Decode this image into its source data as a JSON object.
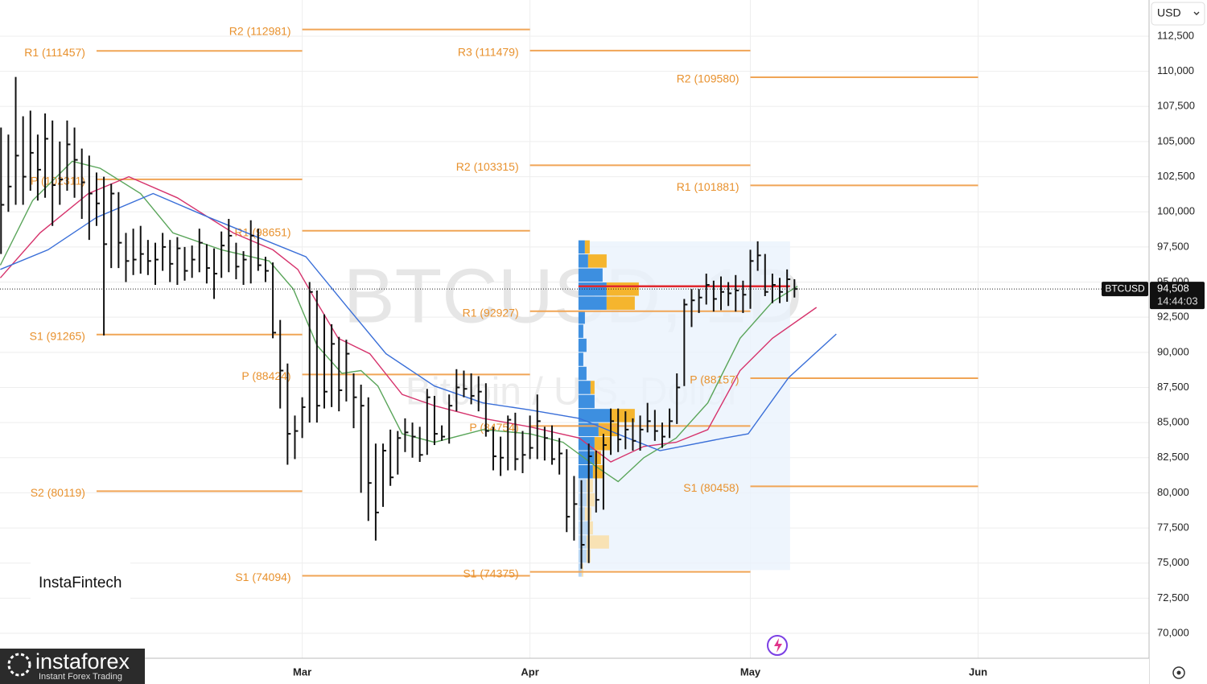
{
  "chart_data": {
    "type": "ohlc",
    "symbol_tag": "BTCUSD",
    "currency": "USD",
    "watermark_title": "BTCUSD, 1D",
    "watermark_subtitle": "Bitcoin / U.S. Dollar",
    "xlim": [
      -13.14,
      143.27
    ],
    "ylim": [
      68225,
      115077
    ],
    "xticks": [
      {
        "value": 28,
        "label": "Mar"
      },
      {
        "value": 59,
        "label": "Apr"
      },
      {
        "value": 89,
        "label": "May"
      },
      {
        "value": 120,
        "label": "Jun"
      }
    ],
    "yticks": [
      {
        "value": 70000,
        "label": "70,000"
      },
      {
        "value": 72500,
        "label": "72,500"
      },
      {
        "value": 75000,
        "label": "75,000"
      },
      {
        "value": 77500,
        "label": "77,500"
      },
      {
        "value": 80000,
        "label": "80,000"
      },
      {
        "value": 82500,
        "label": "82,500"
      },
      {
        "value": 85000,
        "label": "85,000"
      },
      {
        "value": 87500,
        "label": "87,500"
      },
      {
        "value": 90000,
        "label": "90,000"
      },
      {
        "value": 92500,
        "label": "92,500"
      },
      {
        "value": 95000,
        "label": "95,000"
      },
      {
        "value": 97500,
        "label": "97,500"
      },
      {
        "value": 100000,
        "label": "100,000"
      },
      {
        "value": 102500,
        "label": "102,500"
      },
      {
        "value": 105000,
        "label": "105,000"
      },
      {
        "value": 107500,
        "label": "107,500"
      },
      {
        "value": 110000,
        "label": "110,000"
      },
      {
        "value": 112500,
        "label": "112,500"
      }
    ],
    "grid": true,
    "bar_color": "#111111",
    "first_day": -13,
    "high": [
      106000,
      105500,
      109600,
      106800,
      107200,
      105500,
      107000,
      106500,
      105000,
      106500,
      106000,
      104500,
      104000,
      102800,
      102500,
      102000,
      101400,
      98500,
      98800,
      99000,
      98000,
      97800,
      98500,
      98000,
      98200,
      97500,
      97600,
      98800,
      97700,
      97400,
      98600,
      99500,
      97800,
      97200,
      99400,
      98800,
      96800,
      96400,
      92300,
      89200,
      85500,
      86800,
      95000,
      94400,
      92700,
      92000,
      91100,
      90900,
      88500,
      87700,
      86800,
      83500,
      83500,
      84500,
      84400,
      85300,
      85000,
      84700,
      87400,
      86900,
      84800,
      87000,
      88800,
      88700,
      88500,
      88300,
      87800,
      84700,
      84000,
      85500,
      85700,
      84400,
      85500,
      87000,
      84700,
      84800,
      83900,
      83100,
      81200,
      80900,
      83500,
      83000,
      84200,
      86000,
      86000,
      85800,
      85300,
      85500,
      86400,
      85900,
      85000,
      86000,
      88500,
      93800,
      94500,
      94500,
      95600,
      95100,
      95400,
      95000,
      95500,
      95100,
      97300,
      97900,
      97000,
      95600,
      95300,
      95900,
      95200
    ],
    "low": [
      97000,
      100000,
      100500,
      100500,
      101500,
      100800,
      101000,
      99000,
      100500,
      101500,
      101000,
      99500,
      98000,
      99000,
      91200,
      96000,
      96000,
      95000,
      95500,
      95600,
      95500,
      94800,
      95800,
      95000,
      94800,
      95100,
      95300,
      95700,
      94900,
      93800,
      95300,
      95700,
      95200,
      94800,
      94900,
      95800,
      95000,
      91000,
      86000,
      82000,
      82400,
      83900,
      85000,
      85000,
      86000,
      86100,
      85800,
      86500,
      84600,
      80000,
      78000,
      76600,
      79000,
      80500,
      81300,
      82900,
      82500,
      82200,
      82700,
      83400,
      83700,
      83500,
      85800,
      86800,
      86300,
      85800,
      84000,
      81600,
      81200,
      81600,
      81600,
      81400,
      82400,
      82400,
      82300,
      82000,
      81300,
      77200,
      76600,
      74600,
      75000,
      78600,
      78800,
      82700,
      82900,
      83100,
      83000,
      83000,
      84300,
      83700,
      83200,
      83900,
      84900,
      87600,
      91800,
      92800,
      93400,
      92900,
      93000,
      93300,
      92900,
      92800,
      93100,
      95800,
      94000,
      93500,
      93500,
      93600,
      93900
    ],
    "close": [
      100500,
      101800,
      104000,
      102500,
      104200,
      103000,
      105200,
      101900,
      102300,
      104800,
      103700,
      102100,
      101300,
      100600,
      97700,
      101300,
      97800,
      96500,
      96600,
      97000,
      96500,
      96600,
      97500,
      96300,
      97400,
      95800,
      96600,
      97800,
      96000,
      95600,
      97600,
      98300,
      96100,
      96600,
      98300,
      96200,
      95800,
      91400,
      88700,
      84200,
      84400,
      86100,
      94300,
      86200,
      87200,
      90600,
      87300,
      89900,
      86800,
      86200,
      80700,
      78600,
      83000,
      81100,
      83900,
      84300,
      84000,
      82700,
      86800,
      84200,
      84000,
      86200,
      87500,
      87400,
      86900,
      87200,
      84400,
      82600,
      82500,
      85200,
      82400,
      82700,
      83200,
      85100,
      83900,
      82400,
      82800,
      78300,
      79200,
      76300,
      82600,
      79500,
      83400,
      85100,
      83800,
      84500,
      83700,
      84500,
      85100,
      84400,
      84000,
      85100,
      87500,
      93400,
      93700,
      93900,
      94800,
      93800,
      94300,
      94200,
      94400,
      94100,
      96500,
      96900,
      94300,
      94800,
      94300,
      95200,
      94508
    ],
    "moving_averages": [
      {
        "color": "#5aa55a",
        "x": [
          -13.1,
          -8.7,
          -3.3,
          0.5,
          6,
          10.4,
          17,
          23.5,
          26.8,
          30,
          33.4,
          36,
          38.3,
          41.6,
          46,
          52.6,
          59,
          63.5,
          67.9,
          71,
          74.5,
          78.9,
          83.2,
          87.6,
          92,
          95.4
        ],
        "values": [
          96200,
          100800,
          103600,
          103100,
          101300,
          98500,
          97300,
          96500,
          94500,
          90500,
          88500,
          88700,
          87600,
          84200,
          83600,
          84500,
          84200,
          83600,
          81900,
          80800,
          82500,
          83900,
          86400,
          91000,
          93600,
          94700
        ]
      },
      {
        "color": "#d6336c",
        "x": [
          -13.1,
          -7.7,
          -1.1,
          4.4,
          11,
          18.6,
          24,
          27.4,
          29.6,
          32.9,
          37.2,
          41.6,
          46,
          52.6,
          59,
          65.7,
          70,
          74.5,
          78.9,
          83.2,
          87.6,
          92,
          98
        ],
        "values": [
          95300,
          98500,
          101300,
          102500,
          101000,
          98500,
          97300,
          95900,
          93900,
          91000,
          89900,
          87000,
          86200,
          85300,
          84700,
          83900,
          82200,
          83300,
          83600,
          84500,
          88700,
          91000,
          93200
        ]
      },
      {
        "color": "#3a6fd8",
        "x": [
          -13.1,
          -6.6,
          0,
          7.7,
          15.3,
          21.9,
          28.5,
          34,
          39.4,
          46,
          52.6,
          59,
          65.7,
          72.3,
          76.7,
          85.5,
          88.7,
          94.2,
          100.7
        ],
        "values": [
          95900,
          97300,
          99600,
          101300,
          99600,
          98200,
          96800,
          93300,
          89900,
          87600,
          86400,
          85900,
          85300,
          83900,
          83000,
          83900,
          84200,
          88200,
          91300
        ]
      }
    ],
    "pivots": [
      {
        "label": "R1 (111457)",
        "value": 111457,
        "start": 0,
        "end": 28
      },
      {
        "label": "P (102311)",
        "value": 102311,
        "start": 0,
        "end": 28
      },
      {
        "label": "S1 (91265)",
        "value": 91265,
        "start": 0,
        "end": 28
      },
      {
        "label": "S2 (80119)",
        "value": 80119,
        "start": 0,
        "end": 28
      },
      {
        "label": "R2 (112981)",
        "value": 112981,
        "start": 28,
        "end": 59
      },
      {
        "label": "R1 (98651)",
        "value": 98651,
        "start": 28,
        "end": 59
      },
      {
        "label": "P (88424)",
        "value": 88424,
        "start": 28,
        "end": 59
      },
      {
        "label": "S1 (74094)",
        "value": 74094,
        "start": 28,
        "end": 59
      },
      {
        "label": "R3 (111479)",
        "value": 111479,
        "start": 59,
        "end": 89
      },
      {
        "label": "R2 (103315)",
        "value": 103315,
        "start": 59,
        "end": 89
      },
      {
        "label": "R1 (92927)",
        "value": 92927,
        "start": 59,
        "end": 89
      },
      {
        "label": "P (84754)",
        "value": 84754,
        "start": 59,
        "end": 89
      },
      {
        "label": "S1 (74375)",
        "value": 74375,
        "start": 59,
        "end": 89
      },
      {
        "label": "R2 (109580)",
        "value": 109580,
        "start": 89,
        "end": 120
      },
      {
        "label": "R1 (101881)",
        "value": 101881,
        "start": 89,
        "end": 120
      },
      {
        "label": "P (88157)",
        "value": 88157,
        "start": 89,
        "end": 120
      },
      {
        "label": "S1 (80458)",
        "value": 80458,
        "start": 89,
        "end": 120
      }
    ],
    "volume_profile": {
      "start": 65.6,
      "end": 94.4,
      "top": 97900,
      "bottom": 74500,
      "poc": 94700,
      "value_area_low": 81100,
      "prices": [
        97500,
        96500,
        95500,
        94500,
        93500,
        92500,
        91500,
        90500,
        89500,
        88500,
        87500,
        86500,
        85500,
        84500,
        83500,
        82500,
        81500,
        80500,
        79500,
        78500,
        77500,
        76500,
        75500,
        74500
      ],
      "up": [
        8,
        12,
        30,
        35,
        35,
        8,
        6,
        10,
        6,
        10,
        15,
        20,
        40,
        25,
        20,
        20,
        18,
        10,
        10,
        8,
        12,
        10,
        10,
        4
      ],
      "down": [
        6,
        23,
        0,
        40,
        35,
        0,
        0,
        0,
        0,
        0,
        5,
        0,
        30,
        25,
        20,
        8,
        12,
        8,
        10,
        8,
        6,
        28,
        5,
        2
      ]
    },
    "last_price": {
      "value": 94508,
      "label": "94,508"
    },
    "countdown": "14:44:03"
  },
  "branding": {
    "logo": "InstaFintech",
    "footer_logo": "instaforex",
    "footer_tagline": "Instant Forex Trading"
  }
}
